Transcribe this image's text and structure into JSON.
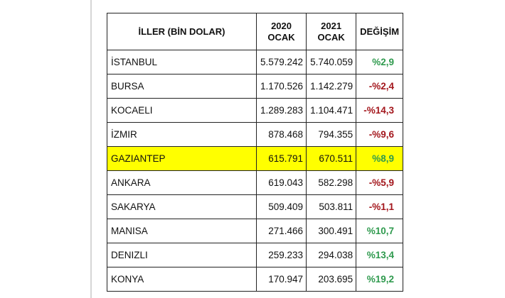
{
  "table": {
    "header": [
      [
        "İLLER (BİN DOLAR)"
      ],
      [
        "2020",
        "OCAK"
      ],
      [
        "2021",
        "OCAK"
      ],
      [
        "DEĞİŞİM"
      ]
    ],
    "rows": [
      [
        "İSTANBUL",
        "5.579.242",
        "5.740.059",
        "%2,9"
      ],
      [
        "BURSA",
        "1.170.526",
        "1.142.279",
        "-%2,4"
      ],
      [
        "KOCAELI",
        "1.289.283",
        "1.104.471",
        "-%14,3"
      ],
      [
        "İZMIR",
        "878.468",
        "794.355",
        "-%9,6"
      ],
      [
        "GAZIANTEP",
        "615.791",
        "670.511",
        "%8,9"
      ],
      [
        "ANKARA",
        "619.043",
        "582.298",
        "-%5,9"
      ],
      [
        "SAKARYA",
        "509.409",
        "503.811",
        "-%1,1"
      ],
      [
        "MANISA",
        "271.466",
        "300.491",
        "%10,7"
      ],
      [
        "DENIZLI",
        "259.233",
        "294.038",
        "%13,4"
      ],
      [
        "KONYA",
        "170.947",
        "203.695",
        "%19,2"
      ]
    ]
  }
}
